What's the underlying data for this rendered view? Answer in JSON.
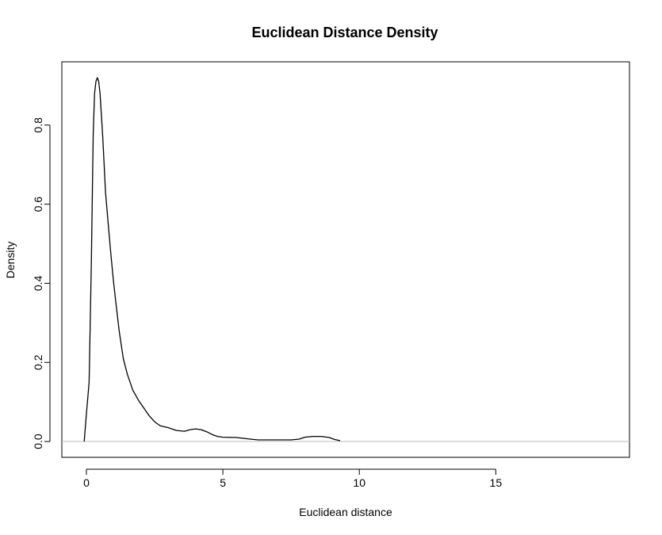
{
  "chart_data": {
    "type": "line",
    "title": "Euclidean Distance Density",
    "xlabel": "Euclidean distance",
    "ylabel": "Density",
    "xlim": [
      -0.9,
      19.9
    ],
    "ylim": [
      -0.04,
      0.96
    ],
    "x_ticks": [
      "0",
      "5",
      "10",
      "15"
    ],
    "x_tick_values": [
      0,
      5,
      10,
      15
    ],
    "y_ticks": [
      "0.0",
      "0.2",
      "0.4",
      "0.6",
      "0.8"
    ],
    "y_tick_values": [
      0,
      0.2,
      0.4,
      0.6,
      0.8
    ],
    "baseline": 0,
    "colors": {
      "line": "#000000",
      "baseline": "#bebebe",
      "box": "#000000"
    },
    "series": [
      {
        "x": [
          -0.08,
          0.0,
          0.1,
          0.18,
          0.25,
          0.3,
          0.35,
          0.4,
          0.45,
          0.5,
          0.6,
          0.7,
          0.8,
          0.9,
          1.0,
          1.1,
          1.2,
          1.35,
          1.5,
          1.7,
          1.9,
          2.1,
          2.3,
          2.5,
          2.7,
          3.0,
          3.3,
          3.6,
          3.8,
          4.0,
          4.2,
          4.4,
          4.6,
          4.8,
          5.0,
          5.5,
          6.0,
          6.3,
          7.0,
          7.5,
          7.8,
          8.0,
          8.3,
          8.6,
          8.9,
          9.1,
          9.3
        ],
        "y": [
          0.0,
          0.07,
          0.15,
          0.45,
          0.78,
          0.88,
          0.91,
          0.92,
          0.91,
          0.88,
          0.77,
          0.63,
          0.55,
          0.47,
          0.4,
          0.34,
          0.28,
          0.21,
          0.17,
          0.13,
          0.105,
          0.085,
          0.065,
          0.05,
          0.04,
          0.035,
          0.028,
          0.026,
          0.03,
          0.032,
          0.03,
          0.025,
          0.018,
          0.013,
          0.011,
          0.01,
          0.006,
          0.004,
          0.004,
          0.004,
          0.006,
          0.011,
          0.013,
          0.013,
          0.01,
          0.005,
          0.002
        ]
      }
    ]
  }
}
